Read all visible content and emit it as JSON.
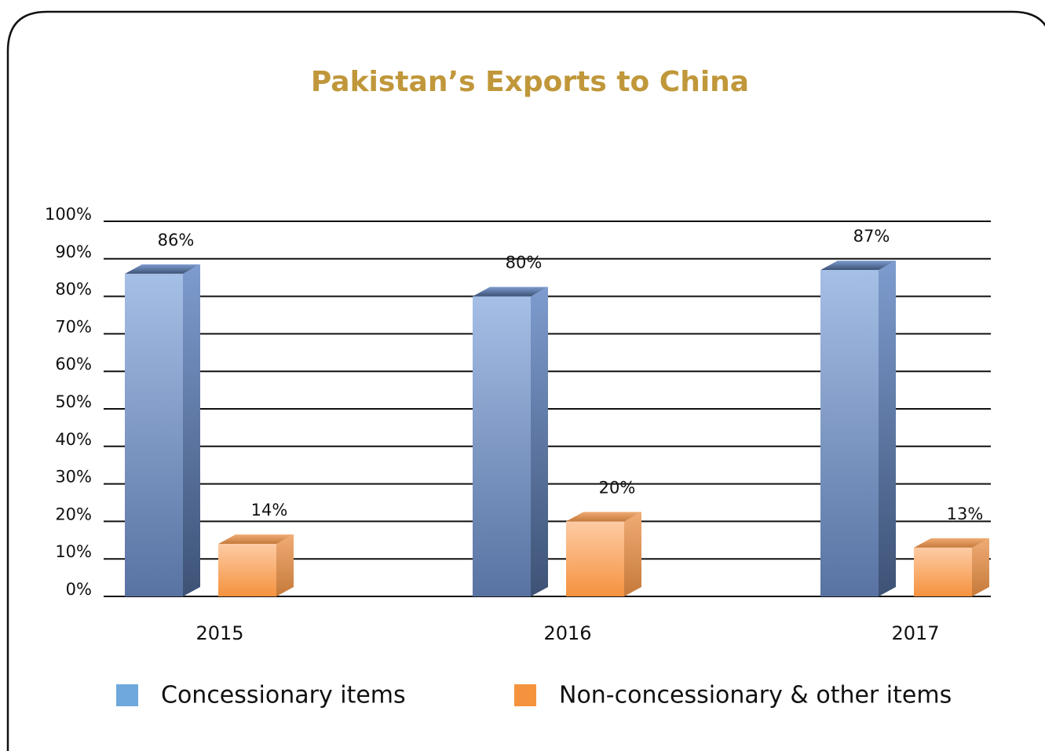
{
  "chart_data": {
    "type": "bar",
    "title": "Pakistan’s Exports to China",
    "categories": [
      "2015",
      "2016",
      "2017"
    ],
    "series": [
      {
        "name": "Concessionary items",
        "color": "#6fa8dc",
        "values": [
          86,
          80,
          87
        ],
        "value_labels": [
          "86%",
          "80%",
          "87%"
        ]
      },
      {
        "name": "Non-concessionary & other items",
        "color": "#f5923e",
        "values": [
          14,
          20,
          13
        ],
        "value_labels": [
          "14%",
          "20%",
          "13%"
        ]
      }
    ],
    "ylim": [
      0,
      100
    ],
    "yticks": [
      {
        "value": 0,
        "label": "0%"
      },
      {
        "value": 10,
        "label": "10%"
      },
      {
        "value": 20,
        "label": "20%"
      },
      {
        "value": 30,
        "label": "30%"
      },
      {
        "value": 40,
        "label": "40%"
      },
      {
        "value": 50,
        "label": "50%"
      },
      {
        "value": 60,
        "label": "60%"
      },
      {
        "value": 70,
        "label": "70%"
      },
      {
        "value": 80,
        "label": "80%"
      },
      {
        "value": 90,
        "label": "90%"
      },
      {
        "value": 100,
        "label": "100%"
      }
    ],
    "grid": true
  }
}
